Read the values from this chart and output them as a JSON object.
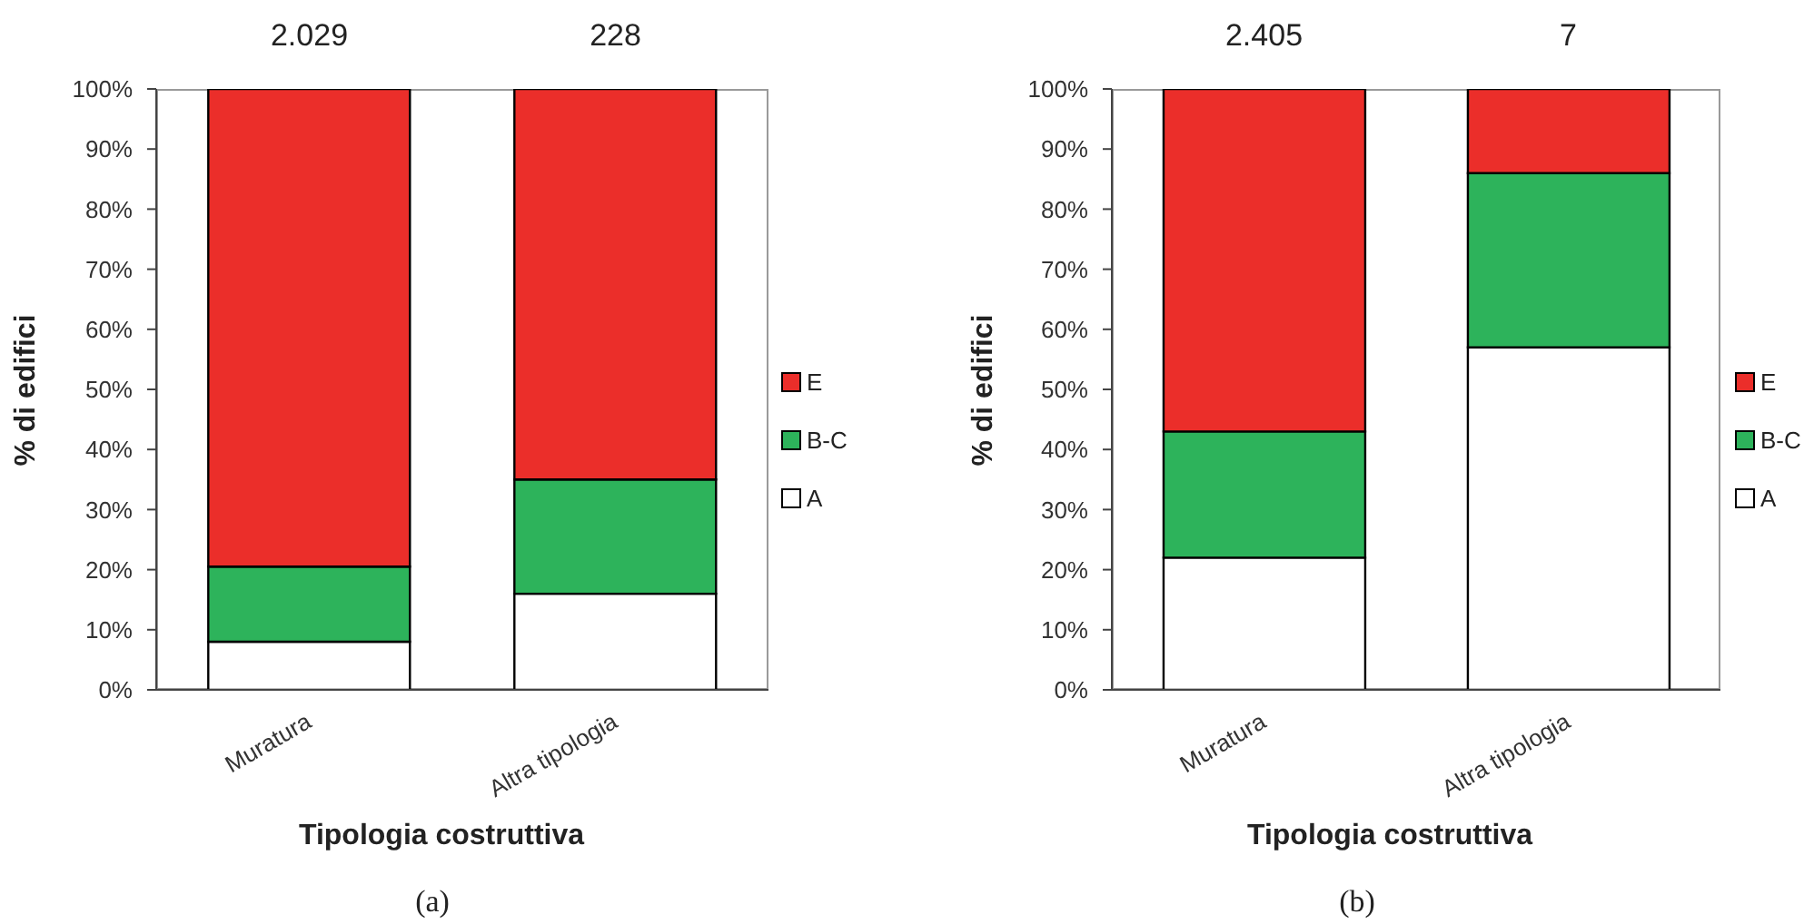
{
  "chart_data": [
    {
      "type": "bar",
      "stacked": true,
      "categories": [
        "Muratura",
        "Altra tipologia"
      ],
      "series": [
        {
          "name": "A",
          "color": "#ffffff",
          "values": [
            8,
            16
          ]
        },
        {
          "name": "B-C",
          "color": "#2db35b",
          "values": [
            12.5,
            19
          ]
        },
        {
          "name": "E",
          "color": "#eb2e2a",
          "values": [
            79.5,
            65
          ]
        }
      ],
      "ylim": [
        0,
        100
      ],
      "yticks": [
        {
          "value": 0,
          "label": "0%"
        },
        {
          "value": 10,
          "label": "10%"
        },
        {
          "value": 20,
          "label": "20%"
        },
        {
          "value": 30,
          "label": "30%"
        },
        {
          "value": 40,
          "label": "40%"
        },
        {
          "value": 50,
          "label": "50%"
        },
        {
          "value": 60,
          "label": "60%"
        },
        {
          "value": 70,
          "label": "70%"
        },
        {
          "value": 80,
          "label": "80%"
        },
        {
          "value": 90,
          "label": "90%"
        },
        {
          "value": 100,
          "label": "100%"
        }
      ],
      "ylabel": "% di edifici",
      "xlabel": "Tipologia costruttiva",
      "legend": "right",
      "grid": false,
      "annotations": [
        {
          "text": "2.029",
          "x": "Muratura",
          "y": 100
        },
        {
          "text": "228",
          "x": "Altra tipologia",
          "y": 100
        },
        "(a)"
      ]
    },
    {
      "type": "bar",
      "stacked": true,
      "categories": [
        "Muratura",
        "Altra tipologia"
      ],
      "series": [
        {
          "name": "A",
          "color": "#ffffff",
          "values": [
            22,
            57
          ]
        },
        {
          "name": "B-C",
          "color": "#2db35b",
          "values": [
            21,
            29
          ]
        },
        {
          "name": "E",
          "color": "#eb2e2a",
          "values": [
            57,
            14
          ]
        }
      ],
      "ylim": [
        0,
        100
      ],
      "yticks": [
        {
          "value": 0,
          "label": "0%"
        },
        {
          "value": 10,
          "label": "10%"
        },
        {
          "value": 20,
          "label": "20%"
        },
        {
          "value": 30,
          "label": "30%"
        },
        {
          "value": 40,
          "label": "40%"
        },
        {
          "value": 50,
          "label": "50%"
        },
        {
          "value": 60,
          "label": "60%"
        },
        {
          "value": 70,
          "label": "70%"
        },
        {
          "value": 80,
          "label": "80%"
        },
        {
          "value": 90,
          "label": "90%"
        },
        {
          "value": 100,
          "label": "100%"
        }
      ],
      "ylabel": "% di edifici",
      "xlabel": "Tipologia costruttiva",
      "legend": "right",
      "grid": false,
      "annotations": [
        {
          "text": "2.405",
          "x": "Muratura",
          "y": 100
        },
        {
          "text": "7",
          "x": "Altra tipologia",
          "y": 100
        },
        "(b)"
      ]
    }
  ]
}
